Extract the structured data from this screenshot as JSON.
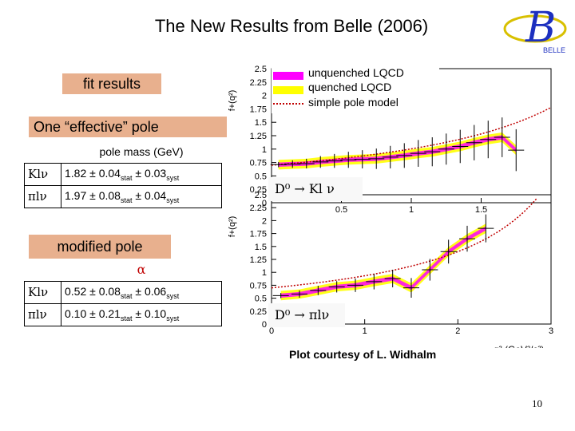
{
  "title": "The New Results from Belle (2006)",
  "logo": {
    "letter": "B",
    "text": "BELLE"
  },
  "fit_results_label": "fit results",
  "effective_pole_label": "One “effective” pole",
  "pole_mass_header": "pole mass (GeV)",
  "effective_rows": [
    {
      "label": "Klν",
      "value": "1.82 ± 0.04",
      "sub1": "stat",
      "mid": " ± 0.03",
      "sub2": "syst"
    },
    {
      "label": "πlν",
      "value": "1.97 ± 0.08",
      "sub1": "stat",
      "mid": " ± 0.04",
      "sub2": "syst"
    }
  ],
  "modified_pole_label": "modified pole",
  "alpha_header": "α",
  "modified_rows": [
    {
      "label": "Klν",
      "value": "0.52 ± 0.08",
      "sub1": "stat",
      "mid": " ± 0.06",
      "sub2": "syst"
    },
    {
      "label": "πlν",
      "value": "0.10 ± 0.21",
      "sub1": "stat",
      "mid": " ± 0.10",
      "sub2": "syst"
    }
  ],
  "legend": [
    "unquenched LQCD",
    "quenched LQCD",
    "simple pole model"
  ],
  "d0k_label": "D⁰ → Kl ν",
  "d0pi_label": "D⁰ → πlν",
  "courtesy": "Plot courtesy of L. Widhalm",
  "page_number": "10",
  "colors": {
    "box": "#e8b08e",
    "unquenched": "#ff00ff",
    "quenched": "#ffff00",
    "pole": "#c00000",
    "alpha": "#c00000"
  },
  "chart_data": [
    {
      "type": "scatter",
      "name": "D0 -> K l nu",
      "ylabel": "f+(q²)",
      "xlim": [
        0,
        2
      ],
      "ylim": [
        0,
        2.5
      ],
      "yticks": [
        "0",
        "0.25",
        "0.5",
        "0.75",
        "1",
        "1.25",
        "1.5",
        "1.75",
        "2",
        "2.25",
        "2.5"
      ],
      "xticks": [
        "0.5",
        "1",
        "1.5"
      ],
      "x": [
        0.05,
        0.15,
        0.25,
        0.35,
        0.45,
        0.55,
        0.65,
        0.75,
        0.85,
        0.95,
        1.05,
        1.15,
        1.25,
        1.35,
        1.45,
        1.55,
        1.65,
        1.75
      ],
      "y": [
        0.71,
        0.72,
        0.73,
        0.76,
        0.78,
        0.8,
        0.81,
        0.82,
        0.85,
        0.88,
        0.92,
        0.95,
        1.0,
        1.05,
        1.12,
        1.18,
        1.22,
        0.98
      ]
    },
    {
      "type": "scatter",
      "name": "D0 -> pi l nu",
      "ylabel": "f+(q²)",
      "xlim": [
        0,
        3
      ],
      "ylim": [
        0,
        2.5
      ],
      "yticks": [
        "0",
        "0.25",
        "0.5",
        "0.75",
        "1",
        "1.25",
        "1.5",
        "1.75",
        "2",
        "2.25",
        "2.5"
      ],
      "xticks": [
        "0",
        "1",
        "2",
        "3"
      ],
      "xlabel": "q² (GeV²/c²)",
      "x": [
        0.1,
        0.3,
        0.5,
        0.7,
        0.9,
        1.1,
        1.3,
        1.5,
        1.7,
        1.9,
        2.1,
        2.3
      ],
      "y": [
        0.55,
        0.58,
        0.65,
        0.72,
        0.75,
        0.82,
        0.88,
        0.7,
        1.05,
        1.4,
        1.65,
        1.85
      ]
    }
  ]
}
